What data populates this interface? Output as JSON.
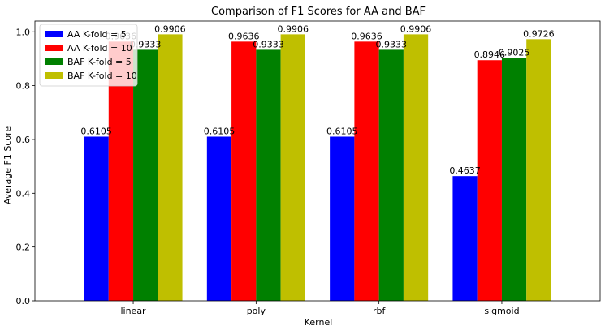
{
  "chart_data": {
    "type": "bar",
    "title": "Comparison of F1 Scores for AA and BAF",
    "xlabel": "Kernel",
    "ylabel": "Average F1 Score",
    "categories": [
      "linear",
      "poly",
      "rbf",
      "sigmoid"
    ],
    "series": [
      {
        "name": "AA K-fold = 5",
        "color": "#0000ff",
        "values": [
          0.6105,
          0.6105,
          0.6105,
          0.4637
        ],
        "labels": [
          "0.6105",
          "0.6105",
          "0.6105",
          "0.4637"
        ]
      },
      {
        "name": "AA K-fold = 10",
        "color": "#ff0000",
        "values": [
          0.9636,
          0.9636,
          0.9636,
          0.8946
        ],
        "labels": [
          "0.9636",
          "0.9636",
          "0.9636",
          "0.8946"
        ]
      },
      {
        "name": "BAF K-fold = 5",
        "color": "#008000",
        "values": [
          0.9333,
          0.9333,
          0.9333,
          0.9025
        ],
        "labels": [
          "0.9333",
          "0.9333",
          "0.9333",
          "0.9025"
        ]
      },
      {
        "name": "BAF K-fold = 10",
        "color": "#bfbf00",
        "values": [
          0.9906,
          0.9906,
          0.9906,
          0.9726
        ],
        "labels": [
          "0.9906",
          "0.9906",
          "0.9906",
          "0.9726"
        ]
      }
    ],
    "ylim": [
      0,
      1.04
    ],
    "yticks": [
      0.0,
      0.2,
      0.4,
      0.6,
      0.8,
      1.0
    ],
    "ytick_labels": [
      "0.0",
      "0.2",
      "0.4",
      "0.6",
      "0.8",
      "1.0"
    ],
    "grid": false,
    "legend_position": "top-left"
  }
}
